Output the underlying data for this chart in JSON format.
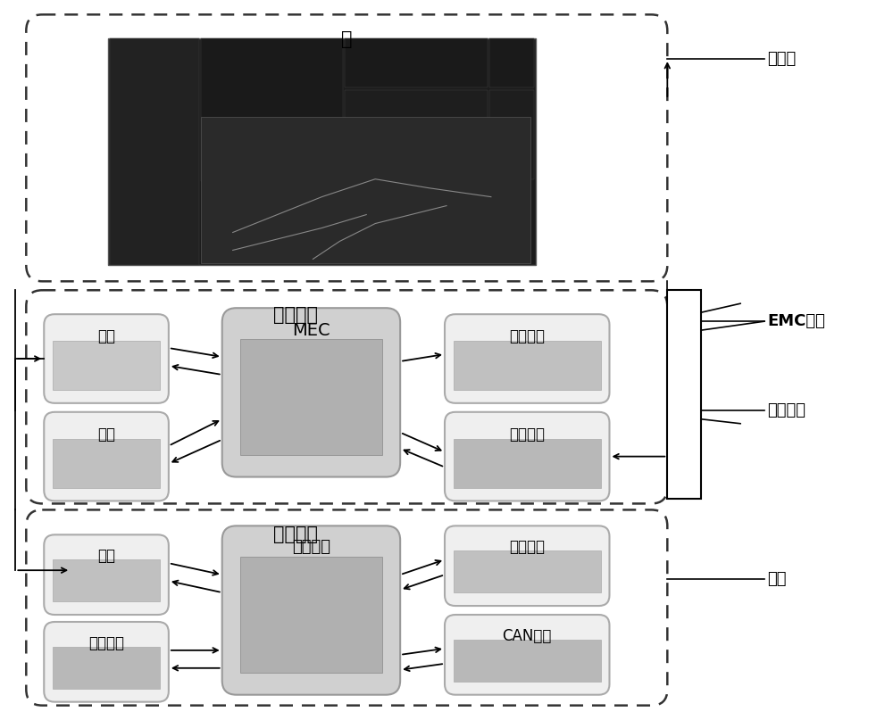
{
  "bg_color": "#ffffff",
  "fig_width": 10.0,
  "fig_height": 8.07,
  "cloud_label": "云",
  "roadside_label": "路边设备",
  "onboard_label": "机载设备",
  "mec_label": "MEC",
  "onboard_ctrl_label": "机载控制",
  "right_labels": [
    "服务端",
    "EMC模块",
    "管理模块",
    "终端"
  ],
  "roadside_left_boxes": [
    {
      "label": "通讯",
      "img_color": "#aaaaaa"
    },
    {
      "label": "控制",
      "img_color": "#aaaaaa"
    }
  ],
  "roadside_right_boxes": [
    {
      "label": "传感装置",
      "img_color": "#aaaaaa"
    },
    {
      "label": "基本装置",
      "img_color": "#aaaaaa"
    }
  ],
  "onboard_left_boxes": [
    {
      "label": "通讯",
      "img_color": "#aaaaaa"
    },
    {
      "label": "人机界面",
      "img_color": "#aaaaaa"
    }
  ],
  "onboard_right_boxes": [
    {
      "label": "传感装置",
      "img_color": "#aaaaaa"
    },
    {
      "label": "CAN接口",
      "img_color": "#aaaaaa"
    }
  ],
  "dashed_color": "#333333",
  "solid_box_color": "#e0e0e0",
  "mec_box_color": "#c0c0c0",
  "arrow_color": "#000000",
  "text_color": "#000000",
  "line_color": "#000000"
}
